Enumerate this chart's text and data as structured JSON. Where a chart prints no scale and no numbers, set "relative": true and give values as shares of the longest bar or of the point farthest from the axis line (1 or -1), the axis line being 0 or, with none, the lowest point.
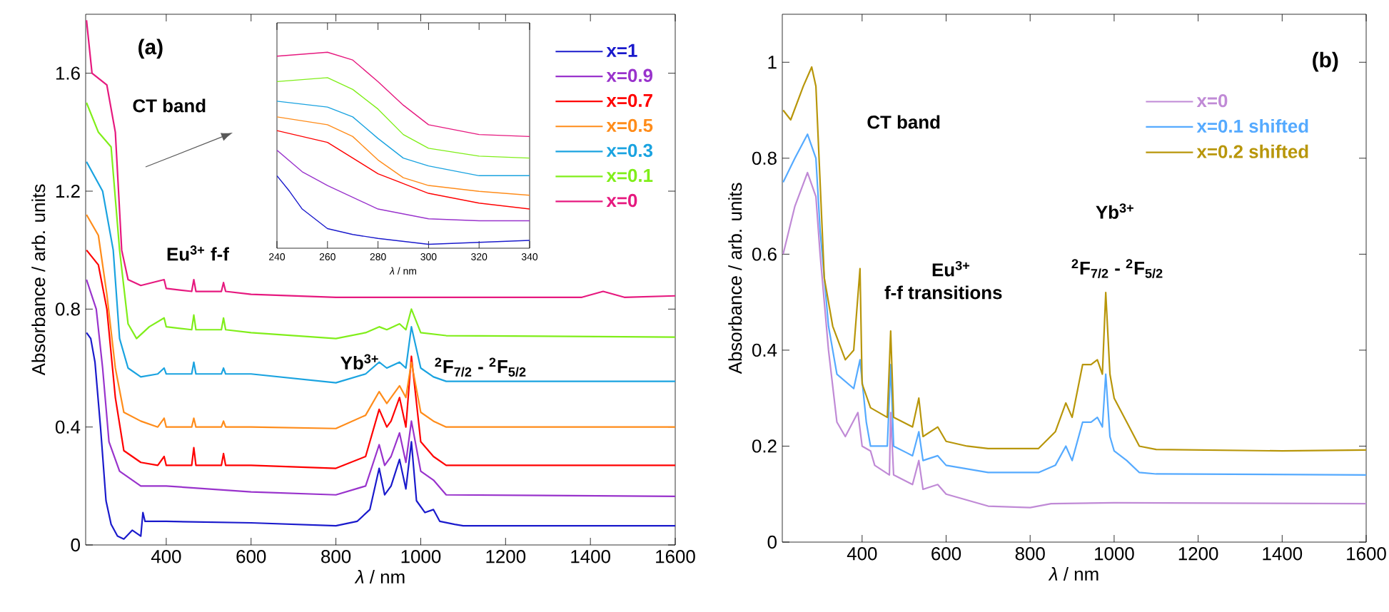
{
  "chart_data": [
    {
      "type": "line",
      "xlabel": "*λ* / nm",
      "ylabel": "Absorbance / arb. units",
      "xlim": [
        210,
        1600
      ],
      "ylim": [
        0,
        1.8
      ],
      "xticks": [
        400,
        600,
        800,
        1000,
        1200,
        1400,
        1600
      ],
      "yticks": [
        0,
        0.4,
        0.8,
        1.2,
        1.6
      ],
      "legend": "top right",
      "annotations": [
        "(a)",
        "CT band",
        "Eu$^{3+}$  f-f",
        "Yb$^{3+}$",
        "$^{2}$F$_{7/2}$ - $^{2}$F$_{5/2}$"
      ],
      "series": [
        {
          "name": "x=1",
          "color": "#1a1acc",
          "x": [
            212,
            222,
            232,
            245,
            258,
            270,
            285,
            300,
            320,
            340,
            345,
            350,
            400,
            600,
            800,
            850,
            880,
            902,
            915,
            930,
            950,
            965,
            978,
            990,
            1010,
            1030,
            1045,
            1080,
            1100,
            1600
          ],
          "values": [
            0.72,
            0.7,
            0.62,
            0.4,
            0.15,
            0.07,
            0.03,
            0.02,
            0.05,
            0.03,
            0.11,
            0.08,
            0.08,
            0.075,
            0.065,
            0.08,
            0.12,
            0.26,
            0.17,
            0.2,
            0.29,
            0.19,
            0.35,
            0.15,
            0.11,
            0.12,
            0.08,
            0.07,
            0.065,
            0.065
          ]
        },
        {
          "name": "x=0.9",
          "color": "#9933cc",
          "x": [
            212,
            235,
            250,
            265,
            290,
            340,
            360,
            400,
            600,
            800,
            870,
            902,
            915,
            930,
            950,
            965,
            978,
            1000,
            1030,
            1060,
            1600
          ],
          "values": [
            0.9,
            0.8,
            0.6,
            0.35,
            0.25,
            0.2,
            0.2,
            0.2,
            0.18,
            0.17,
            0.2,
            0.34,
            0.27,
            0.3,
            0.38,
            0.28,
            0.42,
            0.25,
            0.22,
            0.17,
            0.165
          ]
        },
        {
          "name": "x=0.7",
          "color": "#ff0000",
          "x": [
            212,
            240,
            260,
            280,
            300,
            340,
            380,
            395,
            400,
            460,
            465,
            470,
            530,
            535,
            540,
            600,
            800,
            870,
            902,
            920,
            930,
            950,
            965,
            978,
            1000,
            1030,
            1060,
            1600
          ],
          "values": [
            1.0,
            0.95,
            0.8,
            0.5,
            0.32,
            0.28,
            0.27,
            0.3,
            0.27,
            0.27,
            0.33,
            0.27,
            0.27,
            0.31,
            0.27,
            0.27,
            0.26,
            0.3,
            0.46,
            0.4,
            0.42,
            0.5,
            0.4,
            0.64,
            0.35,
            0.3,
            0.27,
            0.27
          ]
        },
        {
          "name": "x=0.5",
          "color": "#ff8c1a",
          "x": [
            212,
            240,
            260,
            280,
            300,
            340,
            380,
            395,
            400,
            460,
            465,
            470,
            530,
            535,
            540,
            600,
            800,
            870,
            902,
            920,
            930,
            950,
            965,
            978,
            1000,
            1030,
            1060,
            1600
          ],
          "values": [
            1.12,
            1.05,
            0.85,
            0.6,
            0.45,
            0.42,
            0.4,
            0.43,
            0.4,
            0.4,
            0.43,
            0.4,
            0.4,
            0.42,
            0.4,
            0.4,
            0.395,
            0.44,
            0.52,
            0.48,
            0.5,
            0.54,
            0.5,
            0.62,
            0.45,
            0.42,
            0.4,
            0.4
          ]
        },
        {
          "name": "x=0.3",
          "color": "#1aa3e0",
          "x": [
            212,
            250,
            275,
            290,
            310,
            340,
            380,
            395,
            400,
            460,
            465,
            470,
            530,
            535,
            540,
            600,
            800,
            870,
            902,
            920,
            950,
            965,
            978,
            1000,
            1030,
            1060,
            1600
          ],
          "values": [
            1.3,
            1.2,
            1.0,
            0.7,
            0.6,
            0.57,
            0.58,
            0.6,
            0.58,
            0.58,
            0.62,
            0.58,
            0.58,
            0.6,
            0.58,
            0.58,
            0.55,
            0.58,
            0.62,
            0.6,
            0.62,
            0.6,
            0.74,
            0.6,
            0.57,
            0.555,
            0.555
          ]
        },
        {
          "name": "x=0.1",
          "color": "#80ee1a",
          "x": [
            212,
            240,
            270,
            290,
            310,
            330,
            360,
            395,
            400,
            460,
            465,
            470,
            530,
            535,
            540,
            600,
            800,
            870,
            902,
            920,
            950,
            965,
            978,
            1000,
            1060,
            1600
          ],
          "values": [
            1.5,
            1.4,
            1.35,
            1.0,
            0.75,
            0.7,
            0.74,
            0.77,
            0.74,
            0.73,
            0.78,
            0.73,
            0.73,
            0.77,
            0.73,
            0.72,
            0.7,
            0.72,
            0.74,
            0.73,
            0.75,
            0.73,
            0.8,
            0.72,
            0.71,
            0.705
          ]
        },
        {
          "name": "x=0",
          "color": "#e6197f",
          "x": [
            212,
            225,
            260,
            280,
            295,
            310,
            340,
            395,
            400,
            460,
            465,
            470,
            530,
            535,
            540,
            600,
            800,
            1380,
            1430,
            1480,
            1600
          ],
          "values": [
            1.78,
            1.6,
            1.56,
            1.4,
            1.0,
            0.9,
            0.88,
            0.9,
            0.87,
            0.86,
            0.9,
            0.86,
            0.86,
            0.89,
            0.86,
            0.85,
            0.84,
            0.84,
            0.86,
            0.84,
            0.845
          ]
        }
      ]
    },
    {
      "type": "line",
      "relative": true,
      "xlabel": "*λ* / nm",
      "xlim": [
        240,
        340
      ],
      "xticks": [
        240,
        260,
        280,
        300,
        320,
        340
      ],
      "tick_labels": "x",
      "series": [
        {
          "color": "#1a1acc",
          "x": [
            240,
            245,
            250,
            260,
            270,
            280,
            300,
            320,
            340
          ],
          "values": [
            0.37,
            0.29,
            0.2,
            0.1,
            0.07,
            0.05,
            0.02,
            0.03,
            0.04
          ]
        },
        {
          "color": "#9933cc",
          "x": [
            240,
            250,
            260,
            280,
            300,
            320,
            340
          ],
          "values": [
            0.5,
            0.39,
            0.32,
            0.2,
            0.15,
            0.14,
            0.14
          ]
        },
        {
          "color": "#ff0000",
          "x": [
            240,
            260,
            270,
            280,
            290,
            300,
            320,
            340
          ],
          "values": [
            0.6,
            0.54,
            0.46,
            0.38,
            0.33,
            0.28,
            0.23,
            0.2
          ]
        },
        {
          "color": "#ff8c1a",
          "x": [
            240,
            260,
            270,
            280,
            290,
            300,
            320,
            340
          ],
          "values": [
            0.67,
            0.63,
            0.57,
            0.45,
            0.36,
            0.32,
            0.29,
            0.27
          ]
        },
        {
          "color": "#1aa3e0",
          "x": [
            240,
            260,
            270,
            280,
            290,
            300,
            320,
            340
          ],
          "values": [
            0.75,
            0.72,
            0.67,
            0.56,
            0.46,
            0.42,
            0.37,
            0.37
          ]
        },
        {
          "color": "#80ee1a",
          "x": [
            240,
            260,
            270,
            280,
            290,
            300,
            320,
            340
          ],
          "values": [
            0.85,
            0.87,
            0.81,
            0.71,
            0.58,
            0.51,
            0.47,
            0.46
          ]
        },
        {
          "color": "#e6197f",
          "x": [
            240,
            260,
            270,
            280,
            290,
            300,
            320,
            340
          ],
          "values": [
            0.98,
            1,
            0.96,
            0.85,
            0.73,
            0.63,
            0.58,
            0.57
          ]
        }
      ]
    },
    {
      "type": "line",
      "xlabel": "*λ* / nm",
      "ylabel": "Absorbance / arb. units",
      "xlim": [
        210,
        1600
      ],
      "ylim": [
        0,
        1.1
      ],
      "xticks": [
        400,
        600,
        800,
        1000,
        1200,
        1400,
        1600
      ],
      "yticks": [
        0,
        0.2,
        0.4,
        0.6,
        0.8,
        1
      ],
      "legend": "top right",
      "annotations": [
        "(b)",
        "CT band",
        "Eu$^{3+}$",
        "f-f transitions",
        "Yb$^{3+}$",
        "$^{2}$F$_{7/2}$ - $^{2}$F$_{5/2}$"
      ],
      "series": [
        {
          "name": "x=0",
          "color": "#c08ad6",
          "x": [
            212,
            240,
            270,
            290,
            300,
            320,
            340,
            360,
            390,
            400,
            420,
            430,
            465,
            468,
            475,
            520,
            535,
            545,
            580,
            600,
            700,
            800,
            850,
            1000,
            1600
          ],
          "values": [
            0.6,
            0.7,
            0.77,
            0.72,
            0.6,
            0.4,
            0.25,
            0.22,
            0.27,
            0.2,
            0.19,
            0.16,
            0.14,
            0.27,
            0.14,
            0.12,
            0.17,
            0.11,
            0.12,
            0.1,
            0.075,
            0.072,
            0.08,
            0.082,
            0.08
          ]
        },
        {
          "name": "x=0.1 shifted",
          "color": "#55aaff",
          "x": [
            212,
            240,
            270,
            290,
            300,
            320,
            340,
            380,
            395,
            410,
            420,
            460,
            468,
            475,
            520,
            535,
            545,
            580,
            600,
            700,
            820,
            860,
            885,
            900,
            925,
            945,
            960,
            972,
            980,
            990,
            1000,
            1030,
            1060,
            1100,
            1600
          ],
          "values": [
            0.75,
            0.8,
            0.85,
            0.8,
            0.65,
            0.45,
            0.35,
            0.32,
            0.38,
            0.25,
            0.2,
            0.2,
            0.37,
            0.2,
            0.18,
            0.23,
            0.17,
            0.18,
            0.16,
            0.145,
            0.145,
            0.16,
            0.2,
            0.17,
            0.25,
            0.25,
            0.26,
            0.24,
            0.35,
            0.22,
            0.19,
            0.17,
            0.145,
            0.142,
            0.14
          ]
        },
        {
          "name": "x=0.2 shifted",
          "color": "#b8960a",
          "x": [
            212,
            230,
            260,
            280,
            290,
            300,
            310,
            330,
            360,
            380,
            395,
            400,
            420,
            460,
            468,
            475,
            520,
            535,
            545,
            580,
            600,
            650,
            700,
            820,
            860,
            885,
            900,
            925,
            945,
            960,
            972,
            980,
            990,
            1000,
            1030,
            1060,
            1100,
            1400,
            1600
          ],
          "values": [
            0.9,
            0.88,
            0.95,
            0.99,
            0.95,
            0.75,
            0.55,
            0.45,
            0.38,
            0.4,
            0.57,
            0.33,
            0.28,
            0.26,
            0.44,
            0.26,
            0.24,
            0.3,
            0.22,
            0.24,
            0.21,
            0.2,
            0.195,
            0.195,
            0.23,
            0.29,
            0.26,
            0.37,
            0.37,
            0.38,
            0.35,
            0.52,
            0.35,
            0.3,
            0.25,
            0.2,
            0.193,
            0.19,
            0.192
          ]
        }
      ]
    }
  ]
}
